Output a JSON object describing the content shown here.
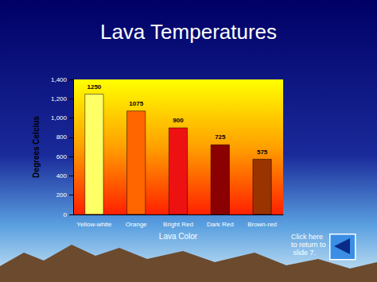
{
  "chart_data": {
    "type": "bar",
    "title": "Lava Temperatures",
    "categories": [
      "Yellow-white",
      "Orange",
      "Bright Red",
      "Dark Red",
      "Brown-red"
    ],
    "values": [
      1250,
      1075,
      900,
      725,
      575
    ],
    "colors": [
      "#ffff66",
      "#ff6600",
      "#ee1111",
      "#8b0000",
      "#993300"
    ],
    "x_label": "Lava Color",
    "y_label": "Degrees Celcius",
    "ylim": [
      0,
      1400
    ],
    "yticks": [
      0,
      200,
      400,
      600,
      800,
      1000,
      1200,
      1400
    ],
    "grid": false,
    "data_labels": true,
    "annotation": "Click here to return to slide 7."
  }
}
